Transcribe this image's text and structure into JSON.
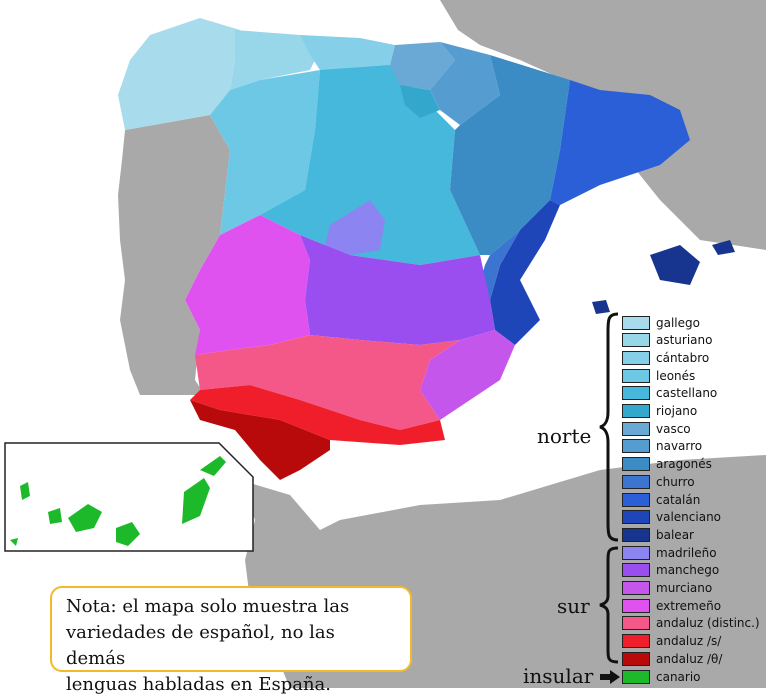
{
  "legend": {
    "norte_label": "norte",
    "sur_label": "sur",
    "insular_label": "insular",
    "arrow_icon": "right-arrow-icon",
    "items": [
      {
        "label": "gallego",
        "color": "#a8dcec"
      },
      {
        "label": "asturiano",
        "color": "#98d6ea"
      },
      {
        "label": "cántabro",
        "color": "#85cfe8"
      },
      {
        "label": "leonés",
        "color": "#6cc8e4"
      },
      {
        "label": "castellano",
        "color": "#45b8dc"
      },
      {
        "label": "riojano",
        "color": "#34a8cc"
      },
      {
        "label": "vasco",
        "color": "#6aa9d6"
      },
      {
        "label": "navarro",
        "color": "#559cd0"
      },
      {
        "label": "aragonés",
        "color": "#3b8cc4"
      },
      {
        "label": "churro",
        "color": "#3c74d2"
      },
      {
        "label": "catalán",
        "color": "#2a5fd8"
      },
      {
        "label": "valenciano",
        "color": "#1e46b8"
      },
      {
        "label": "balear",
        "color": "#17358f"
      },
      {
        "label": "madrileño",
        "color": "#8c84f0"
      },
      {
        "label": "manchego",
        "color": "#9a4ef0"
      },
      {
        "label": "murciano",
        "color": "#c456ec"
      },
      {
        "label": "extremeño",
        "color": "#e052f0"
      },
      {
        "label": "andaluz (distinc.)",
        "color": "#f45888"
      },
      {
        "label": "andaluz /s/",
        "color": "#f01e2a"
      },
      {
        "label": "andaluz /θ/",
        "color": "#b80a0a"
      },
      {
        "label": "canario",
        "color": "#1cba2a"
      }
    ]
  },
  "note": {
    "line1": "Nota: el mapa solo muestra las",
    "line2": "variedades de español, no las demás",
    "line3": "lenguas habladas en España."
  },
  "colors": {
    "land_other": "#a9a9a9",
    "sea": "#ffffff",
    "note_border": "#f2b92a"
  }
}
